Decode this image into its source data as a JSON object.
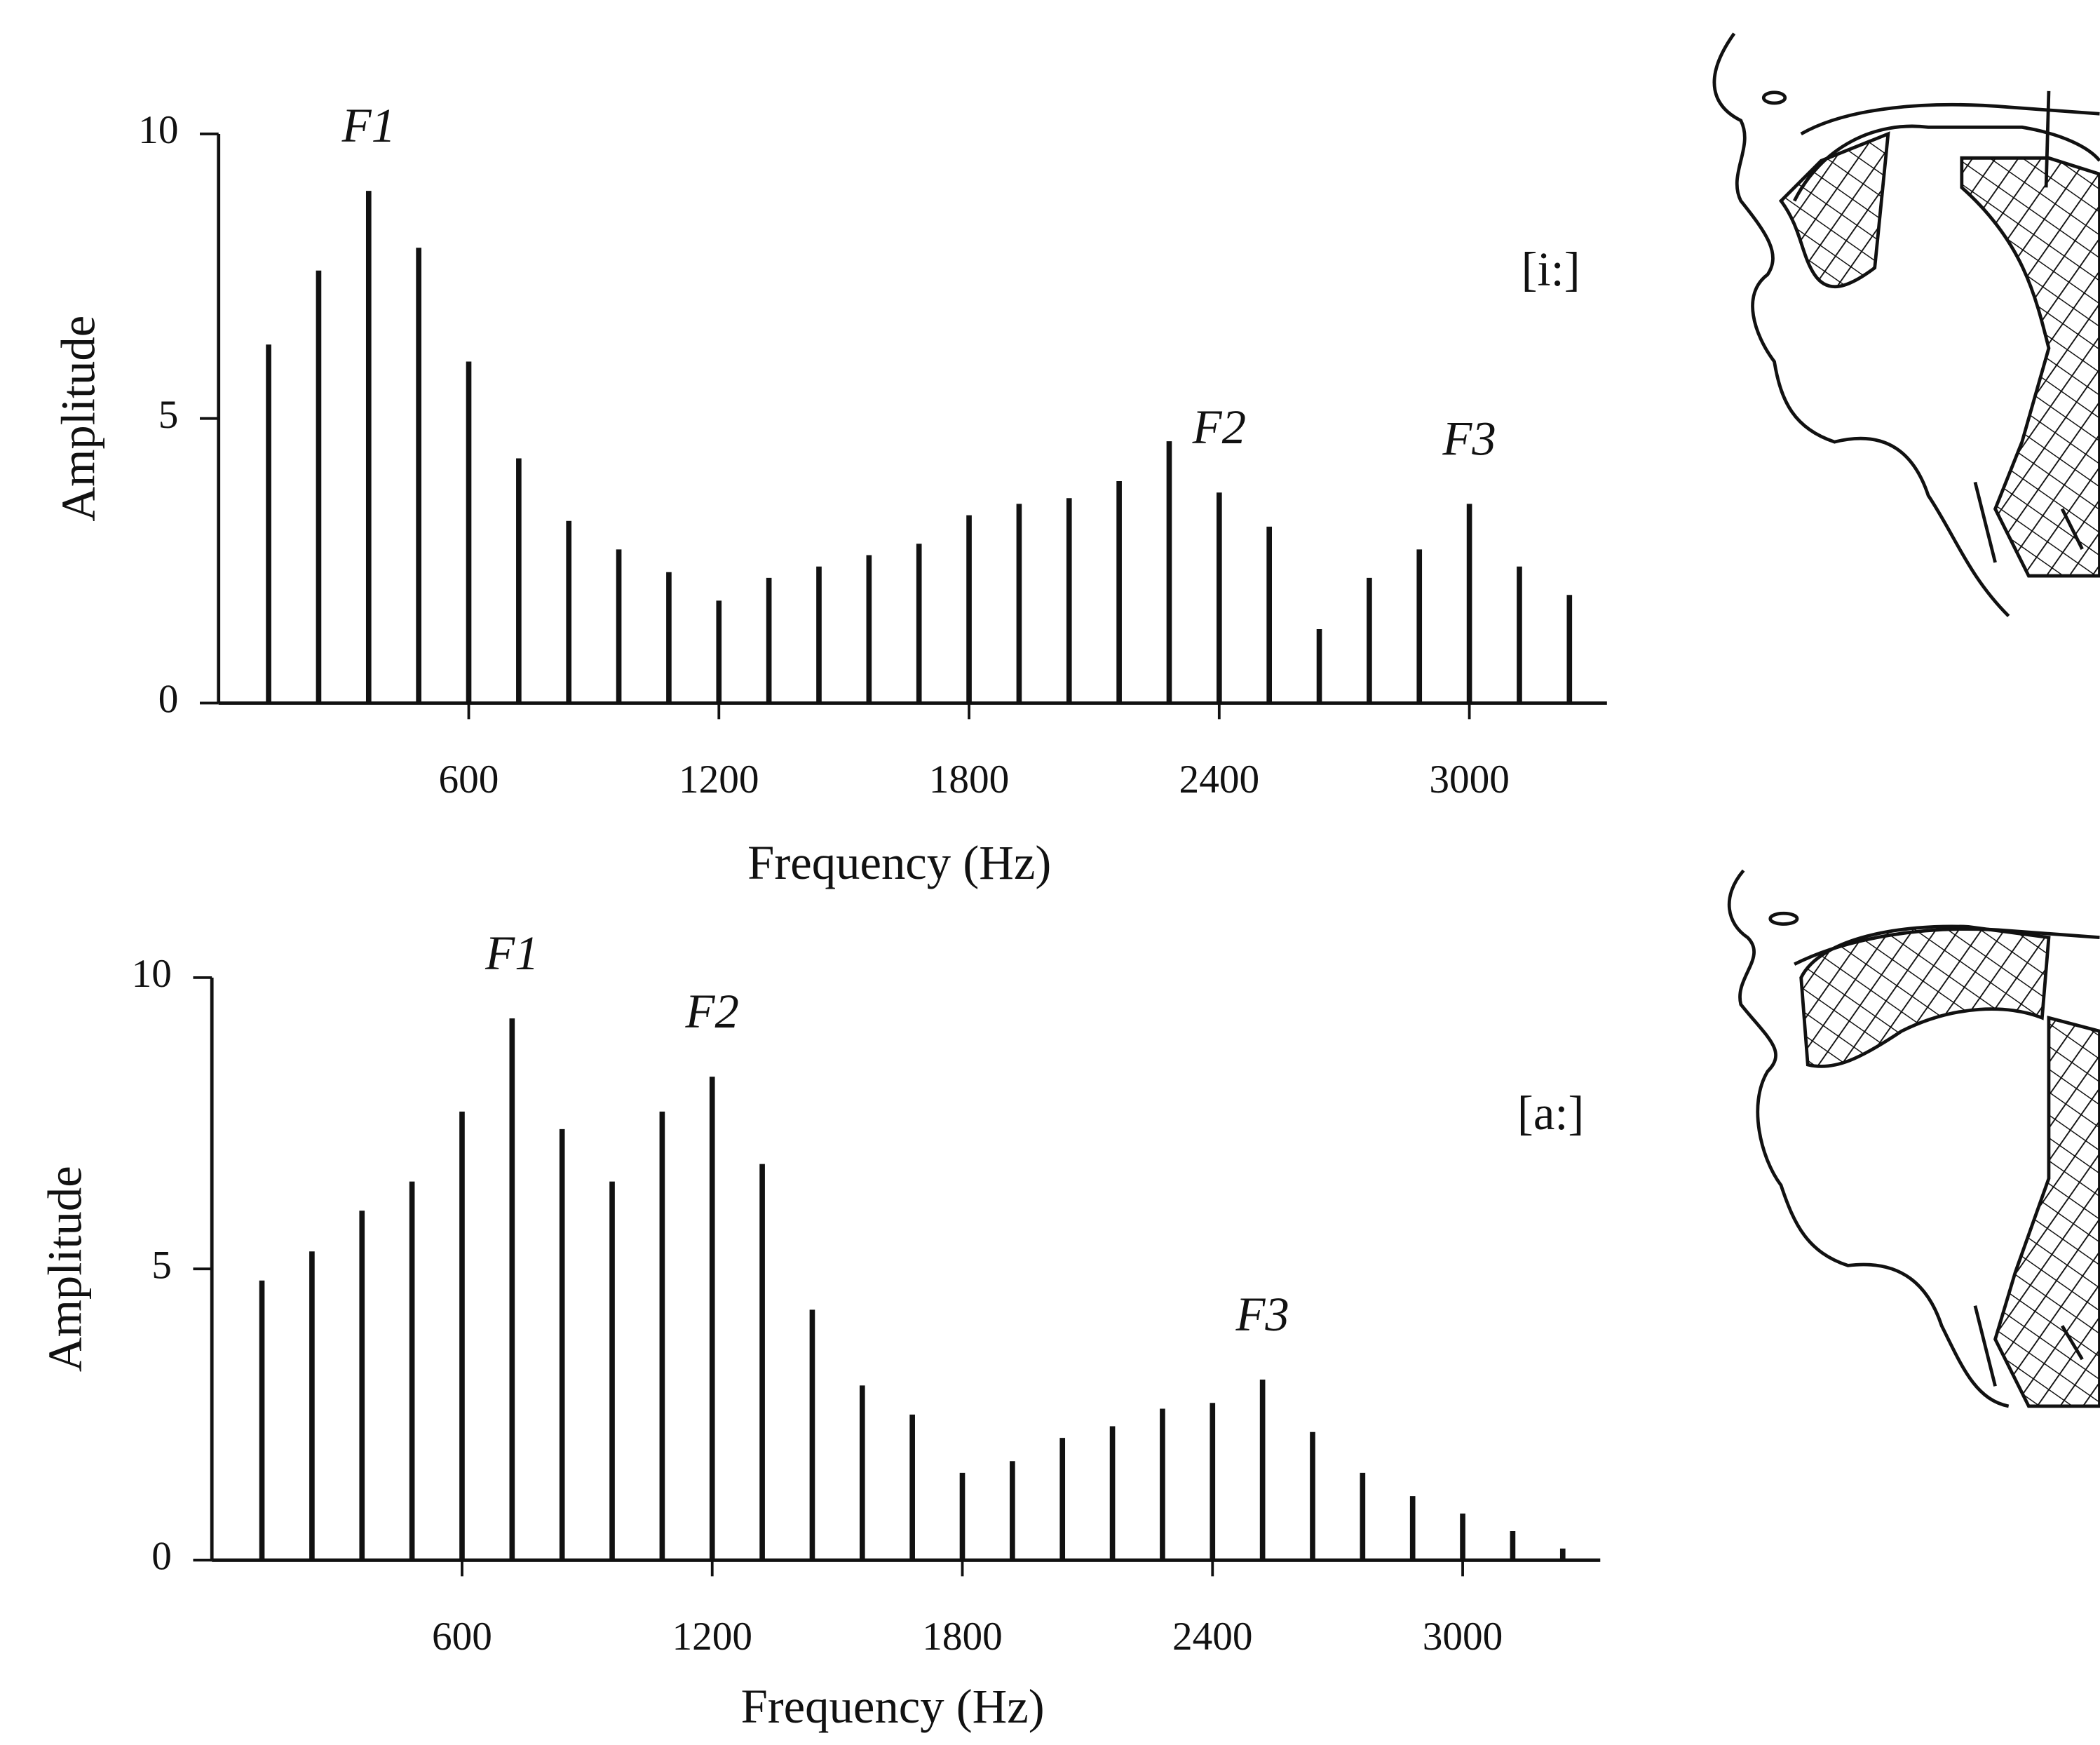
{
  "chart_data": [
    {
      "type": "stem",
      "label": "[i:]",
      "x_label": "Frequency (Hz)",
      "y_label": "Amplitude",
      "annotations": [
        "F1",
        "F2",
        "F3"
      ],
      "color": "#111111",
      "x": [
        120,
        240,
        360,
        480,
        600,
        720,
        840,
        960,
        1080,
        1200,
        1320,
        1440,
        1560,
        1680,
        1800,
        1920,
        2040,
        2160,
        2280,
        2400,
        2520,
        2640,
        2760,
        2880,
        3000,
        3120,
        3240
      ],
      "values": [
        6.3,
        7.6,
        9.0,
        8.0,
        6.0,
        4.3,
        3.2,
        2.7,
        2.3,
        1.8,
        2.2,
        2.4,
        2.6,
        2.8,
        3.3,
        3.5,
        3.6,
        3.9,
        4.6,
        3.7,
        3.1,
        1.3,
        2.2,
        2.7,
        3.5,
        2.4,
        1.9
      ],
      "xlim": [
        0,
        3330
      ],
      "ylim": [
        0,
        10
      ],
      "xticks": [
        600,
        1200,
        1800,
        2400,
        3000
      ],
      "yticks": [
        0,
        5,
        10
      ]
    },
    {
      "type": "stem",
      "label": "[a:]",
      "x_label": "Frequency (Hz)",
      "y_label": "Amplitude",
      "annotations": [
        "F1",
        "F2",
        "F3"
      ],
      "color": "#111111",
      "x": [
        120,
        240,
        360,
        480,
        600,
        720,
        840,
        960,
        1080,
        1200,
        1320,
        1440,
        1560,
        1680,
        1800,
        1920,
        2040,
        2160,
        2280,
        2400,
        2520,
        2640,
        2760,
        2880,
        3000,
        3120,
        3240
      ],
      "values": [
        4.8,
        5.3,
        6.0,
        6.5,
        7.7,
        9.3,
        7.4,
        6.5,
        7.7,
        8.3,
        6.8,
        4.3,
        3.0,
        2.5,
        1.5,
        1.7,
        2.1,
        2.3,
        2.6,
        2.7,
        3.1,
        2.2,
        1.5,
        1.1,
        0.8,
        0.5,
        0.2
      ],
      "xlim": [
        0,
        3330
      ],
      "ylim": [
        0,
        10
      ],
      "xticks": [
        600,
        1200,
        1800,
        2400,
        3000
      ],
      "yticks": [
        0,
        5,
        10
      ]
    }
  ]
}
